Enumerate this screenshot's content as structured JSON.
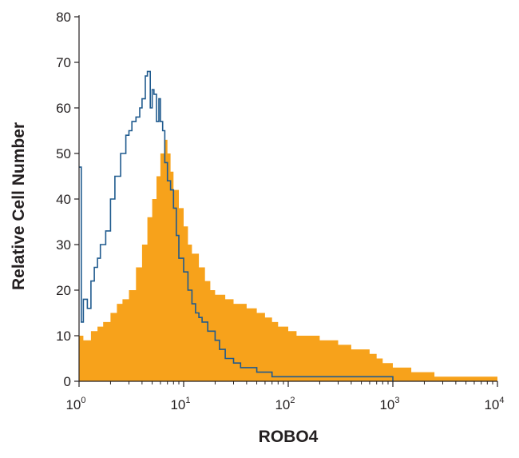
{
  "chart_data": {
    "type": "area",
    "title": "",
    "xlabel": "ROBO4",
    "ylabel": "Relative Cell Number",
    "x_scale": "log",
    "xlim": [
      1,
      10000
    ],
    "ylim": [
      0,
      80
    ],
    "grid": false,
    "legend": "none",
    "x_ticks": [
      {
        "base": "10",
        "exp": "0",
        "value": 1
      },
      {
        "base": "10",
        "exp": "1",
        "value": 10
      },
      {
        "base": "10",
        "exp": "2",
        "value": 100
      },
      {
        "base": "10",
        "exp": "3",
        "value": 1000
      },
      {
        "base": "10",
        "exp": "4",
        "value": 10000
      }
    ],
    "y_ticks": [
      "0",
      "10",
      "20",
      "30",
      "40",
      "50",
      "60",
      "70",
      "80"
    ],
    "series": [
      {
        "style": "filled",
        "color": "#f7a21b",
        "x": [
          1.0,
          1.1,
          1.2,
          1.3,
          1.5,
          1.7,
          2.0,
          2.3,
          2.6,
          3.0,
          3.5,
          4.0,
          4.5,
          5.0,
          5.5,
          6.0,
          6.5,
          7.0,
          7.5,
          8.0,
          9.0,
          10,
          11,
          12,
          14,
          16,
          18,
          20,
          25,
          30,
          40,
          50,
          60,
          70,
          80,
          100,
          120,
          150,
          200,
          250,
          300,
          400,
          500,
          600,
          700,
          800,
          1000,
          1200,
          1500,
          2000,
          2500,
          3000,
          4000,
          5000,
          6000,
          7000,
          8000,
          10000
        ],
        "y": [
          10,
          9,
          9,
          11,
          12,
          13,
          15,
          17,
          18,
          20,
          25,
          30,
          36,
          40,
          45,
          50,
          53,
          50,
          46,
          42,
          38,
          34,
          30,
          28,
          25,
          22,
          20,
          19,
          18,
          17,
          16,
          15,
          14,
          13,
          12,
          11,
          10,
          10,
          9,
          9,
          8,
          7,
          7,
          6,
          5,
          4,
          3,
          3,
          2,
          2,
          1,
          1,
          1,
          1,
          1,
          1,
          1,
          0
        ]
      },
      {
        "style": "outline",
        "color": "#1f5a8e",
        "x": [
          1.0,
          1.05,
          1.1,
          1.2,
          1.3,
          1.4,
          1.5,
          1.6,
          1.8,
          2.0,
          2.2,
          2.5,
          2.8,
          3.0,
          3.2,
          3.5,
          3.8,
          4.0,
          4.3,
          4.5,
          4.8,
          5.0,
          5.2,
          5.5,
          5.8,
          6.0,
          6.3,
          6.6,
          7.0,
          7.5,
          8.0,
          8.5,
          9.0,
          10,
          11,
          12,
          13,
          14,
          15,
          17,
          20,
          22,
          25,
          30,
          35,
          40,
          50,
          60,
          70,
          80,
          100,
          150,
          200,
          300,
          400,
          500,
          600,
          800,
          1000
        ],
        "y": [
          47,
          13,
          18,
          16,
          22,
          25,
          27,
          30,
          33,
          40,
          45,
          50,
          54,
          55,
          57,
          58,
          60,
          62,
          67,
          68,
          60,
          64,
          63,
          57,
          62,
          57,
          55,
          48,
          44,
          42,
          38,
          32,
          27,
          24,
          20,
          17,
          15,
          14,
          13,
          11,
          9,
          7,
          5,
          4,
          3,
          3,
          2,
          2,
          1,
          1,
          1,
          1,
          1,
          1,
          1,
          1,
          1,
          1,
          0
        ]
      }
    ]
  }
}
